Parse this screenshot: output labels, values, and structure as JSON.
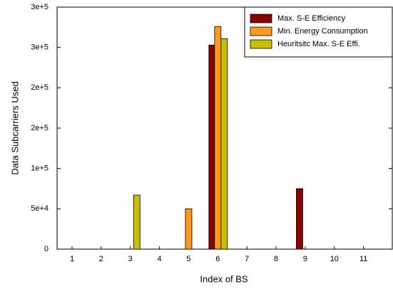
{
  "chart_data": {
    "type": "bar",
    "xlabel": "Index of BS",
    "ylabel": "Data Subcarriers Used",
    "categories": [
      "1",
      "2",
      "3",
      "4",
      "5",
      "6",
      "7",
      "8",
      "9",
      "10",
      "11"
    ],
    "series": [
      {
        "name": "Max. S-E Efficiency",
        "color": "#8b0000",
        "values": [
          0,
          0,
          0,
          0,
          0,
          253000,
          0,
          0,
          75000,
          0,
          0
        ]
      },
      {
        "name": "Min. Energy Consumption",
        "color": "#ff9a1f",
        "values": [
          0,
          0,
          0,
          0,
          50000,
          276000,
          0,
          0,
          0,
          0,
          0
        ]
      },
      {
        "name": "Heuritsitc Max. S-E Effi.",
        "color": "#c8c000",
        "values": [
          0,
          0,
          67000,
          0,
          0,
          261000,
          0,
          0,
          0,
          0,
          0
        ]
      }
    ],
    "ylim": [
      0,
      300000
    ],
    "yticks": [
      0,
      {
        "value": 50000,
        "label": "5e+4"
      },
      {
        "value": 100000,
        "label": "1e+5"
      },
      {
        "value": 150000,
        "label": "2e+5"
      },
      {
        "value": 200000,
        "label": "2e+5"
      },
      {
        "value": 250000,
        "label": "3e+5"
      },
      {
        "value": 300000,
        "label": "3e+5"
      }
    ],
    "legend": "upper right"
  }
}
